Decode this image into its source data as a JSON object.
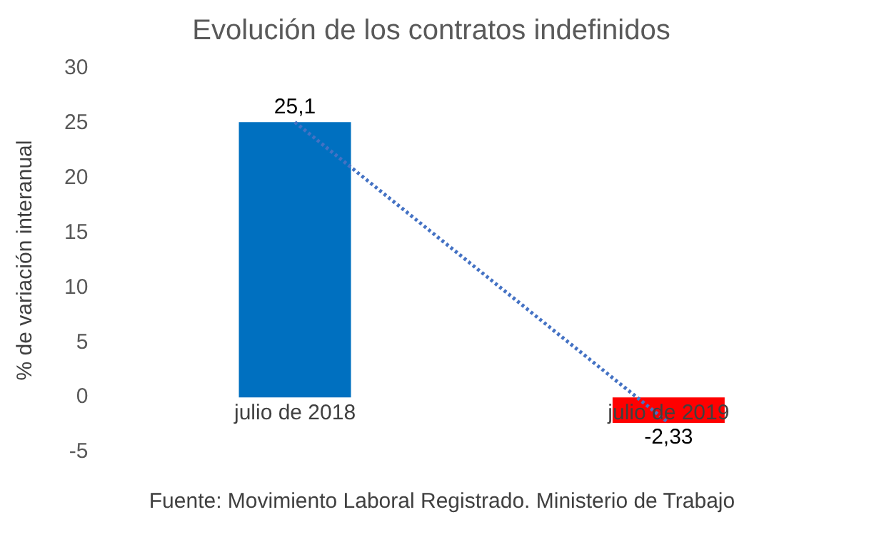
{
  "chart_data": {
    "type": "bar",
    "title": "Evolución de los contratos indefinidos",
    "ylabel": "% de variación interanual",
    "categories": [
      "julio de 2018",
      "julio de 2019"
    ],
    "series": [
      {
        "colors": [
          "#0070c0",
          "#ff0000"
        ],
        "values": [
          25.1,
          -2.33
        ],
        "value_labels": [
          "25,1",
          "-2,33"
        ]
      },
      {
        "type": "line",
        "color": "#4472c4",
        "values": [
          25.1,
          -2.33
        ],
        "line_style": "dotted",
        "marker": "none"
      }
    ],
    "ylim": [
      -5,
      30
    ],
    "yticks": [
      -5,
      0,
      5,
      10,
      15,
      20,
      25,
      30
    ],
    "grid": false,
    "legend": false,
    "annotations": [
      "Fuente: Movimiento Laboral Registrado. Ministerio de Trabajo"
    ]
  }
}
